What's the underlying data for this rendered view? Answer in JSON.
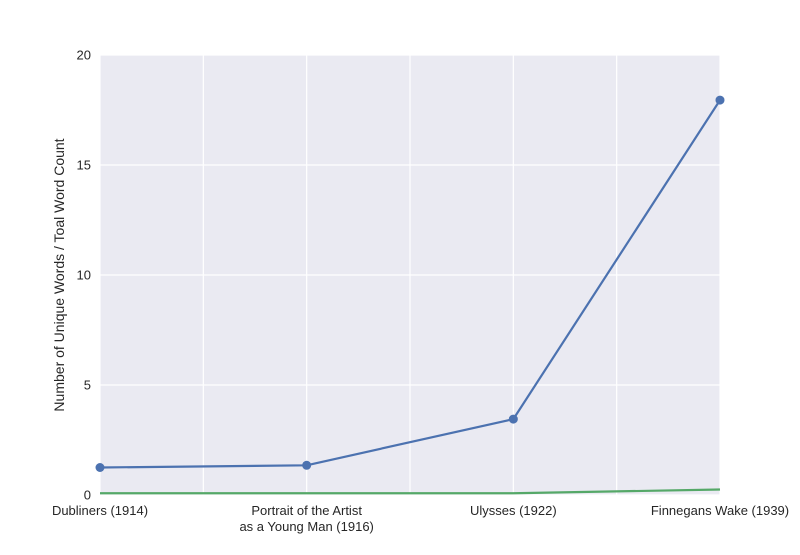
{
  "chart_data": {
    "type": "line",
    "title": "",
    "xlabel": "",
    "ylabel": "Number of Unique Words / Toal Word Count",
    "categories": [
      "Dubliners (1914)",
      "Portrait of the Artist\nas a Young Man (1916)",
      "Ulysses (1922)",
      "Finnegans Wake (1939)"
    ],
    "yticks": [
      "0",
      "5",
      "10",
      "15",
      "20"
    ],
    "ylim": [
      0,
      20
    ],
    "grid": true,
    "series": [
      {
        "values": [
          1.25,
          1.35,
          3.45,
          17.95
        ],
        "color": "#4c72b0",
        "markers": true
      },
      {
        "values": [
          0.08,
          0.08,
          0.08,
          0.25
        ],
        "color": "#55a868",
        "markers": false
      }
    ],
    "colors": {
      "plot_background": "#eaeaf2",
      "grid": "#ffffff"
    }
  }
}
